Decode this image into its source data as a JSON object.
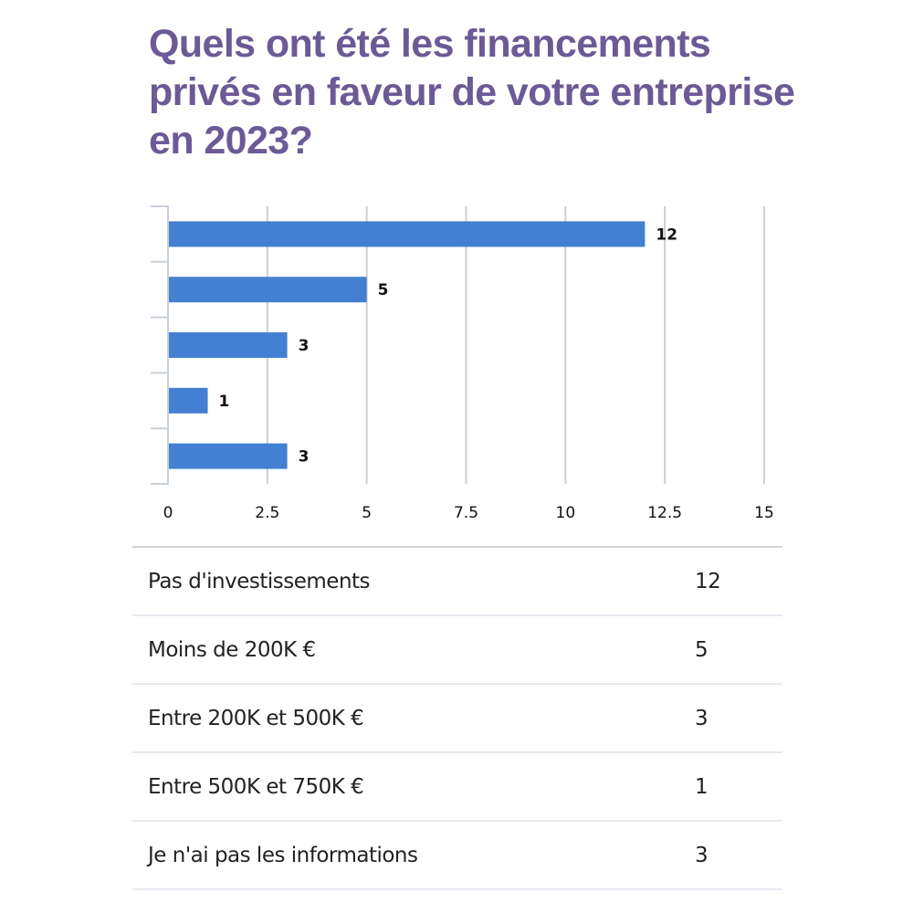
{
  "title": "Quels ont été les financements privés en faveur de votre entreprise en 2023?",
  "colors": {
    "title": "#6c5a96",
    "bar": "#4480d1",
    "grid": "#cfcfcf",
    "axis": "#c8d0da"
  },
  "chart_data": {
    "type": "bar",
    "orientation": "horizontal",
    "title": "Quels ont été les financements privés en faveur de votre entreprise en 2023?",
    "categories": [
      "Pas d'investissements",
      "Moins de 200K €",
      "Entre 200K et 500K €",
      "Entre 500K et 750K €",
      "Je n'ai pas les informations"
    ],
    "values": [
      12,
      5,
      3,
      1,
      3
    ],
    "data_labels": [
      "12",
      "5",
      "3",
      "1",
      "3"
    ],
    "xlim": [
      0,
      15
    ],
    "xticks": [
      0,
      2.5,
      5,
      7.5,
      10,
      12.5,
      15
    ],
    "xtick_labels": [
      "0",
      "2.5",
      "5",
      "7.5",
      "10",
      "12.5",
      "15"
    ],
    "xlabel": "",
    "ylabel": "",
    "grid": true,
    "legend": "none"
  },
  "table": {
    "rows": [
      {
        "label": "Pas d'investissements",
        "value": "12"
      },
      {
        "label": "Moins de 200K €",
        "value": "5"
      },
      {
        "label": "Entre 200K et 500K €",
        "value": "3"
      },
      {
        "label": "Entre 500K et 750K €",
        "value": "1"
      },
      {
        "label": "Je n'ai pas les informations",
        "value": "3"
      }
    ]
  }
}
